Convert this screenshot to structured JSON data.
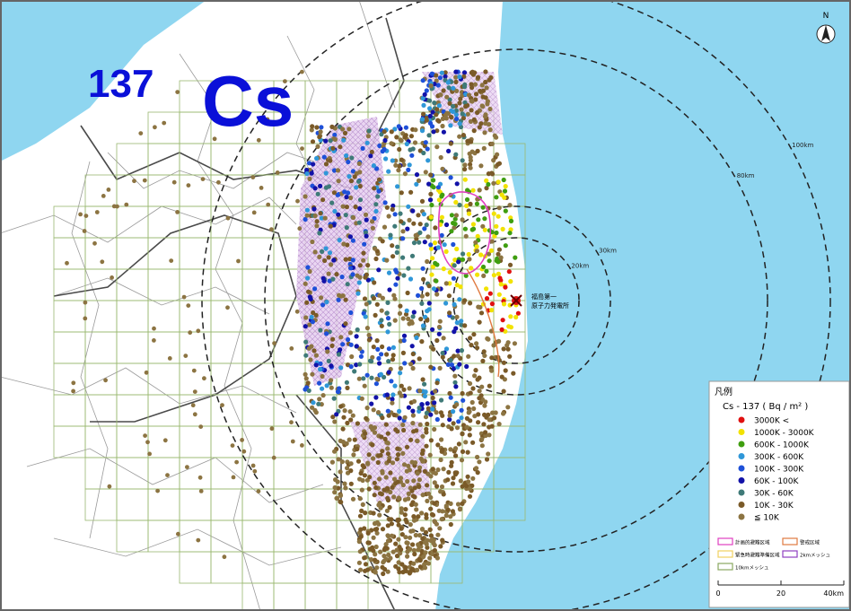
{
  "title": {
    "mass_number": "137",
    "element": "Cs"
  },
  "compass": "N",
  "plant_label": [
    "福島第一",
    "原子力発電所"
  ],
  "distance_rings": [
    {
      "km": 20,
      "label": "20km"
    },
    {
      "km": 30,
      "label": "30km"
    },
    {
      "km": 80,
      "label": "80km"
    },
    {
      "km": 100,
      "label": "100km"
    }
  ],
  "legend": {
    "title": "凡例",
    "subtitle": "Cs - 137 ( Bq / m² )",
    "items": [
      {
        "label": "3000K <",
        "color": "#e01010"
      },
      {
        "label": "1000K - 3000K",
        "color": "#f2e200"
      },
      {
        "label": "600K - 1000K",
        "color": "#3f9e10"
      },
      {
        "label": "300K - 600K",
        "color": "#2f97d8"
      },
      {
        "label": "100K - 300K",
        "color": "#1e50d8"
      },
      {
        "label": "60K - 100K",
        "color": "#1212a8"
      },
      {
        "label": "30K - 60K",
        "color": "#3f7a78"
      },
      {
        "label": "10K - 30K",
        "color": "#7a5a28"
      },
      {
        "label": "≦ 10K",
        "color": "#8c7442"
      }
    ],
    "areas": [
      {
        "label": "計画的避難区域",
        "color": "#e040c0"
      },
      {
        "label": "警戒区域",
        "color": "#e07a40"
      },
      {
        "label": "緊急時避難準備区域",
        "color": "#f0d060"
      },
      {
        "label": "2kmメッシュ",
        "color": "#9040c0"
      },
      {
        "label": "10kmメッシュ",
        "color": "#8aa860"
      }
    ]
  },
  "scale_bar": {
    "ticks": [
      {
        "value": 0,
        "label": "0"
      },
      {
        "value": 20,
        "label": "20"
      },
      {
        "value": 40,
        "label": "40km"
      }
    ]
  }
}
